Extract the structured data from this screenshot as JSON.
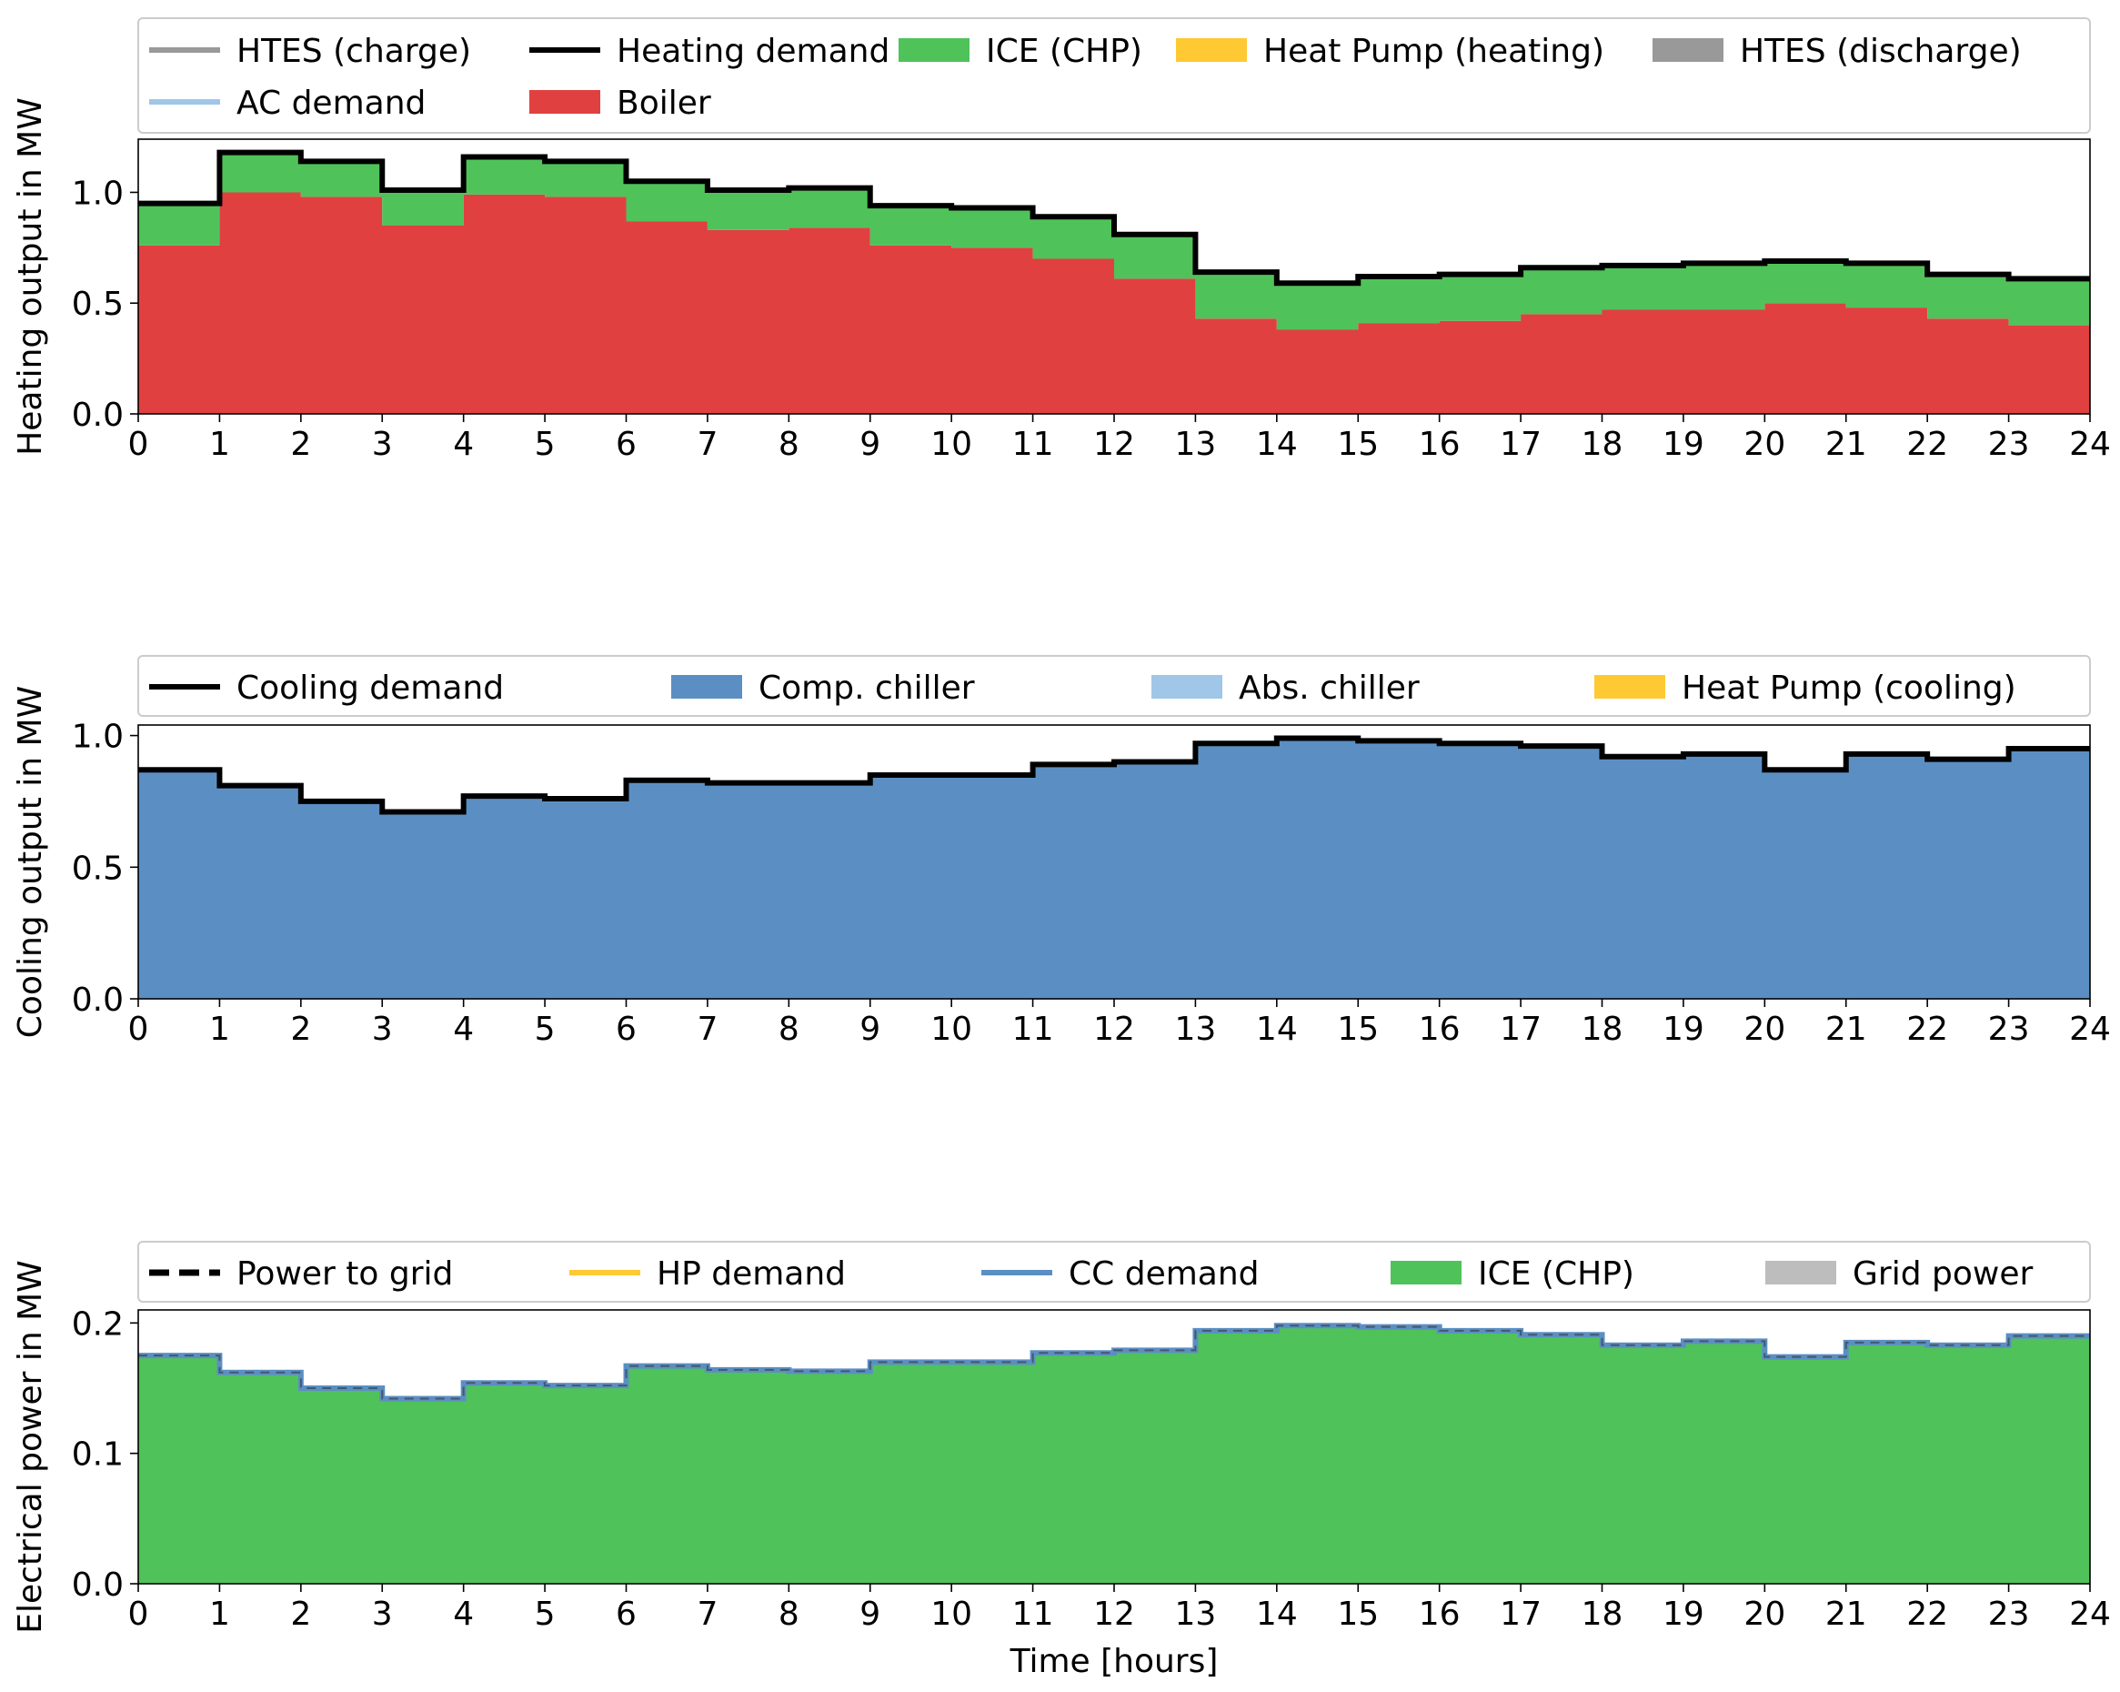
{
  "chart_data": [
    {
      "type": "area",
      "ylabel": "Heating output in MW",
      "xlabel": "",
      "xlim": [
        0,
        24
      ],
      "ylim": [
        0,
        1.24
      ],
      "xticks": [
        "0",
        "1",
        "2",
        "3",
        "4",
        "5",
        "6",
        "7",
        "8",
        "9",
        "10",
        "11",
        "12",
        "13",
        "14",
        "15",
        "16",
        "17",
        "18",
        "19",
        "20",
        "21",
        "22",
        "23",
        "24"
      ],
      "yticks": [
        "0.0",
        "0.5",
        "1.0"
      ],
      "legend": [
        {
          "label": "HTES (charge)",
          "kind": "line",
          "color": "#999999"
        },
        {
          "label": "Heating demand",
          "kind": "line",
          "color": "#000000"
        },
        {
          "label": "ICE (CHP)",
          "kind": "patch",
          "color": "#50c25a"
        },
        {
          "label": "Heat Pump (heating)",
          "kind": "patch",
          "color": "#ffc933"
        },
        {
          "label": "HTES (discharge)",
          "kind": "patch",
          "color": "#999999"
        },
        {
          "label": "AC demand",
          "kind": "line",
          "color": "#a0c6e8"
        },
        {
          "label": "Boiler",
          "kind": "patch",
          "color": "#e04040"
        }
      ],
      "series": [
        {
          "name": "Boiler",
          "color": "#e04040",
          "role": "stack",
          "values": [
            0.76,
            1.0,
            0.98,
            0.85,
            0.99,
            0.98,
            0.87,
            0.83,
            0.84,
            0.76,
            0.75,
            0.7,
            0.61,
            0.43,
            0.38,
            0.41,
            0.42,
            0.45,
            0.47,
            0.47,
            0.5,
            0.48,
            0.43,
            0.4
          ]
        },
        {
          "name": "ICE (CHP)",
          "color": "#50c25a",
          "role": "stack",
          "values": [
            0.19,
            0.18,
            0.16,
            0.16,
            0.17,
            0.16,
            0.18,
            0.18,
            0.18,
            0.18,
            0.18,
            0.19,
            0.2,
            0.21,
            0.21,
            0.21,
            0.21,
            0.21,
            0.2,
            0.21,
            0.19,
            0.2,
            0.2,
            0.2
          ]
        },
        {
          "name": "Heating demand",
          "color": "#000000",
          "role": "line",
          "values": [
            0.95,
            1.18,
            1.14,
            1.01,
            1.16,
            1.14,
            1.05,
            1.01,
            1.02,
            0.94,
            0.93,
            0.89,
            0.81,
            0.64,
            0.59,
            0.62,
            0.63,
            0.66,
            0.67,
            0.68,
            0.69,
            0.68,
            0.63,
            0.61
          ]
        }
      ]
    },
    {
      "type": "area",
      "ylabel": "Cooling output in MW",
      "xlabel": "",
      "xlim": [
        0,
        24
      ],
      "ylim": [
        0,
        1.04
      ],
      "xticks": [
        "0",
        "1",
        "2",
        "3",
        "4",
        "5",
        "6",
        "7",
        "8",
        "9",
        "10",
        "11",
        "12",
        "13",
        "14",
        "15",
        "16",
        "17",
        "18",
        "19",
        "20",
        "21",
        "22",
        "23",
        "24"
      ],
      "yticks": [
        "0.0",
        "0.5",
        "1.0"
      ],
      "legend": [
        {
          "label": "Cooling demand",
          "kind": "line",
          "color": "#000000"
        },
        {
          "label": "Comp. chiller",
          "kind": "patch",
          "color": "#5b8fc3"
        },
        {
          "label": "Abs. chiller",
          "kind": "patch",
          "color": "#a0c6e8"
        },
        {
          "label": "Heat Pump (cooling)",
          "kind": "patch",
          "color": "#ffc933"
        }
      ],
      "series": [
        {
          "name": "Comp. chiller",
          "color": "#5b8fc3",
          "role": "stack",
          "values": [
            0.87,
            0.81,
            0.75,
            0.71,
            0.77,
            0.76,
            0.83,
            0.82,
            0.82,
            0.85,
            0.85,
            0.89,
            0.9,
            0.97,
            0.99,
            0.98,
            0.97,
            0.96,
            0.92,
            0.93,
            0.87,
            0.93,
            0.91,
            0.95
          ]
        },
        {
          "name": "Cooling demand",
          "color": "#000000",
          "role": "line",
          "values": [
            0.87,
            0.81,
            0.75,
            0.71,
            0.77,
            0.76,
            0.83,
            0.82,
            0.82,
            0.85,
            0.85,
            0.89,
            0.9,
            0.97,
            0.99,
            0.98,
            0.97,
            0.96,
            0.92,
            0.93,
            0.87,
            0.93,
            0.91,
            0.95
          ]
        }
      ]
    },
    {
      "type": "area",
      "ylabel": "Electrical power in MW",
      "xlabel": "Time [hours]",
      "xlim": [
        0,
        24
      ],
      "ylim": [
        0,
        0.21
      ],
      "xticks": [
        "0",
        "1",
        "2",
        "3",
        "4",
        "5",
        "6",
        "7",
        "8",
        "9",
        "10",
        "11",
        "12",
        "13",
        "14",
        "15",
        "16",
        "17",
        "18",
        "19",
        "20",
        "21",
        "22",
        "23",
        "24"
      ],
      "yticks": [
        "0.0",
        "0.1",
        "0.2"
      ],
      "legend": [
        {
          "label": "Power to grid",
          "kind": "dash",
          "color": "#000000"
        },
        {
          "label": "HP demand",
          "kind": "line",
          "color": "#ffc933"
        },
        {
          "label": "CC demand",
          "kind": "line",
          "color": "#5b8fc3"
        },
        {
          "label": "ICE (CHP)",
          "kind": "patch",
          "color": "#50c25a"
        },
        {
          "label": "Grid power",
          "kind": "patch",
          "color": "#bdbdbd"
        }
      ],
      "series": [
        {
          "name": "ICE (CHP)",
          "color": "#50c25a",
          "role": "stack",
          "values": [
            0.175,
            0.162,
            0.15,
            0.142,
            0.154,
            0.152,
            0.167,
            0.164,
            0.163,
            0.17,
            0.17,
            0.177,
            0.179,
            0.194,
            0.198,
            0.197,
            0.194,
            0.191,
            0.183,
            0.186,
            0.174,
            0.185,
            0.183,
            0.19
          ]
        },
        {
          "name": "CC demand",
          "color": "#5b8fc3",
          "role": "line",
          "values": [
            0.175,
            0.162,
            0.15,
            0.142,
            0.154,
            0.152,
            0.167,
            0.164,
            0.163,
            0.17,
            0.17,
            0.177,
            0.179,
            0.194,
            0.198,
            0.197,
            0.194,
            0.191,
            0.183,
            0.186,
            0.174,
            0.185,
            0.183,
            0.19
          ]
        }
      ]
    }
  ]
}
